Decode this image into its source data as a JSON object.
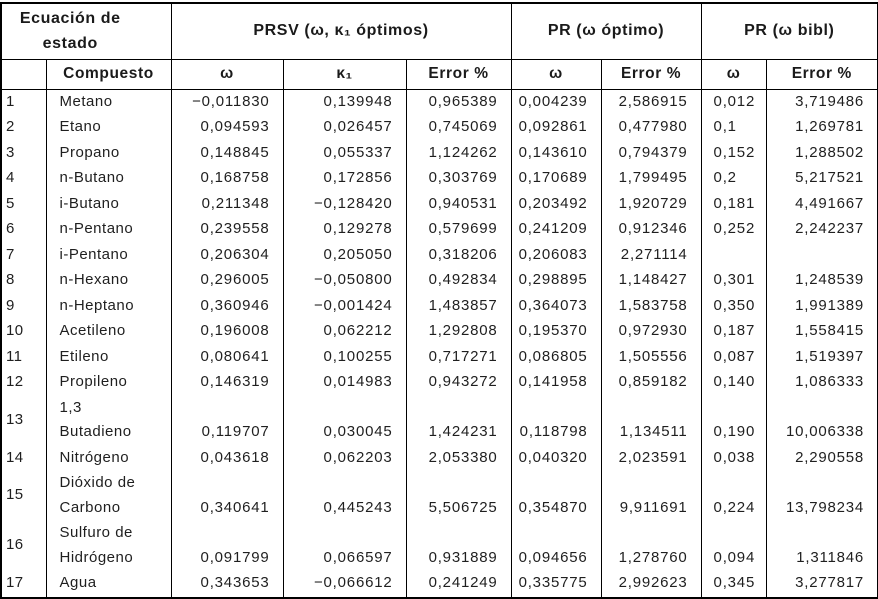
{
  "table": {
    "header_groups": [
      {
        "label": "Ecuación de estado",
        "colspan": 2
      },
      {
        "label": "PRSV (ω, κ₁ óptimos)",
        "colspan": 3
      },
      {
        "label": "PR (ω óptimo)",
        "colspan": 2
      },
      {
        "label": "PR (ω bibl)",
        "colspan": 2
      }
    ],
    "columns": [
      "",
      "Compuesto",
      "ω",
      "κ₁",
      "Error %",
      "ω",
      "Error %",
      "ω",
      "Error %"
    ],
    "rows": [
      [
        "1",
        "Metano",
        "−0,011830",
        "0,139948",
        "0,965389",
        "0,004239",
        "2,586915",
        "0,012",
        "3,719486"
      ],
      [
        "2",
        "Etano",
        "0,094593",
        "0,026457",
        "0,745069",
        "0,092861",
        "0,477980",
        "0,1",
        "1,269781"
      ],
      [
        "3",
        "Propano",
        "0,148845",
        "0,055337",
        "1,124262",
        "0,143610",
        "0,794379",
        "0,152",
        "1,288502"
      ],
      [
        "4",
        "n-Butano",
        "0,168758",
        "0,172856",
        "0,303769",
        "0,170689",
        "1,799495",
        "0,2",
        "5,217521"
      ],
      [
        "5",
        "i-Butano",
        "0,211348",
        "−0,128420",
        "0,940531",
        "0,203492",
        "1,920729",
        "0,181",
        "4,491667"
      ],
      [
        "6",
        "n-Pentano",
        "0,239558",
        "0,129278",
        "0,579699",
        "0,241209",
        "0,912346",
        "0,252",
        "2,242237"
      ],
      [
        "7",
        "i-Pentano",
        "0,206304",
        "0,205050",
        "0,318206",
        "0,206083",
        "2,271114",
        "",
        ""
      ],
      [
        "8",
        "n-Hexano",
        "0,296005",
        "−0,050800",
        "0,492834",
        "0,298895",
        "1,148427",
        "0,301",
        "1,248539"
      ],
      [
        "9",
        "n-Heptano",
        "0,360946",
        "−0,001424",
        "1,483857",
        "0,364073",
        "1,583758",
        "0,350",
        "1,991389"
      ],
      [
        "10",
        "Acetileno",
        "0,196008",
        "0,062212",
        "1,292808",
        "0,195370",
        "0,972930",
        "0,187",
        "1,558415"
      ],
      [
        "11",
        "Etileno",
        "0,080641",
        "0,100255",
        "0,717271",
        "0,086805",
        "1,505556",
        "0,087",
        "1,519397"
      ],
      [
        "12",
        "Propileno",
        "0,146319",
        "0,014983",
        "0,943272",
        "0,141958",
        "0,859182",
        "0,140",
        "1,086333"
      ],
      [
        "13",
        "1,3\nButadieno",
        "0,119707",
        "0,030045",
        "1,424231",
        "0,118798",
        "1,134511",
        "0,190",
        "10,006338"
      ],
      [
        "14",
        "Nitrógeno",
        "0,043618",
        "0,062203",
        "2,053380",
        "0,040320",
        "2,023591",
        "0,038",
        "2,290558"
      ],
      [
        "15",
        "Dióxido de\nCarbono",
        "0,340641",
        "0,445243",
        "5,506725",
        "0,354870",
        "9,911691",
        "0,224",
        "13,798234"
      ],
      [
        "16",
        "Sulfuro de\nHidrógeno",
        "0,091799",
        "0,066597",
        "0,931889",
        "0,094656",
        "1,278760",
        "0,094",
        "1,311846"
      ],
      [
        "17",
        "Agua",
        "0,343653",
        "−0,066612",
        "0,241249",
        "0,335775",
        "2,992623",
        "0,345",
        "3,277817"
      ]
    ]
  },
  "colors": {
    "border": "#000000",
    "text": "#1f1f1f",
    "background": "#ffffff"
  }
}
